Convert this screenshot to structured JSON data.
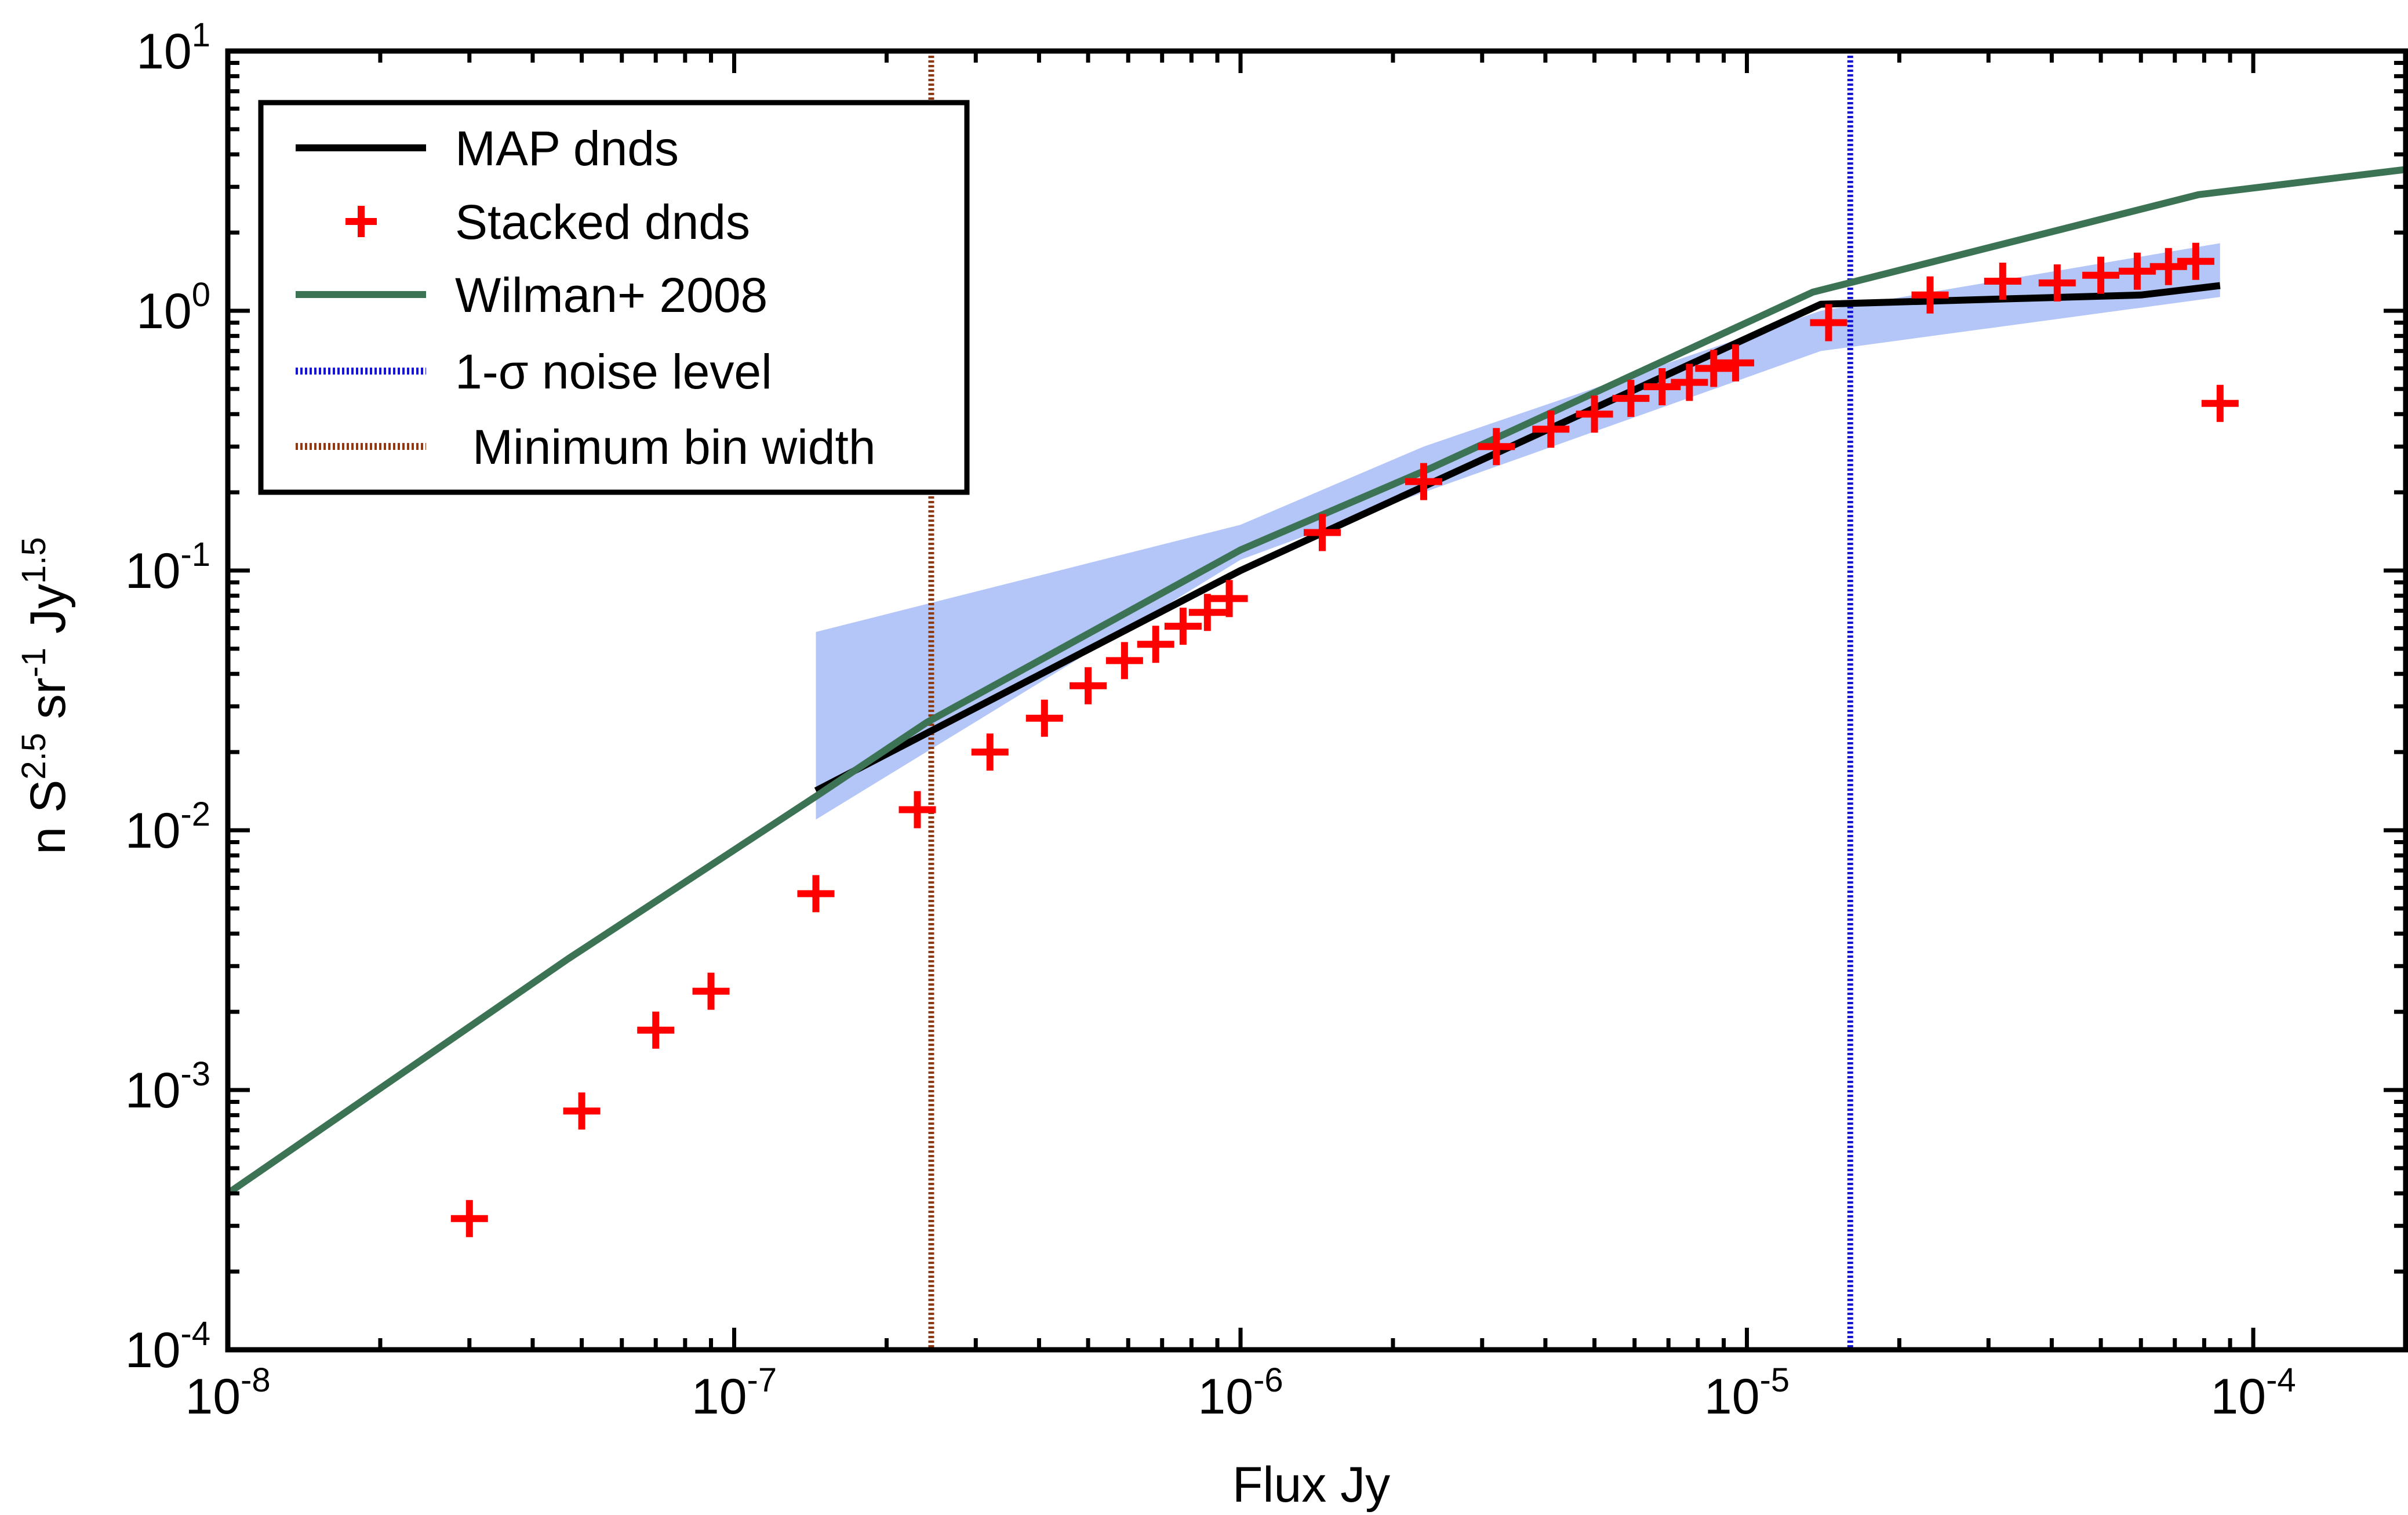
{
  "chart_data": {
    "type": "line",
    "title": "",
    "xlabel": "Flux Jy",
    "ylabel": {
      "base": "n S",
      "exp1": "2.5",
      "mid1": " sr",
      "exp2": "-1",
      "mid2": " Jy",
      "exp3": "1.5"
    },
    "xscale": "log",
    "yscale": "log",
    "xlim": [
      1e-08,
      0.0002
    ],
    "ylim": [
      0.0001,
      10
    ],
    "xticks": [
      {
        "value": 1e-08,
        "base": "10",
        "exp": "-8"
      },
      {
        "value": 1e-07,
        "base": "10",
        "exp": "-7"
      },
      {
        "value": 1e-06,
        "base": "10",
        "exp": "-6"
      },
      {
        "value": 1e-05,
        "base": "10",
        "exp": "-5"
      },
      {
        "value": 0.0001,
        "base": "10",
        "exp": "-4"
      }
    ],
    "yticks": [
      {
        "value": 0.0001,
        "base": "10",
        "exp": "-4"
      },
      {
        "value": 0.001,
        "base": "10",
        "exp": "-3"
      },
      {
        "value": 0.01,
        "base": "10",
        "exp": "-2"
      },
      {
        "value": 0.1,
        "base": "10",
        "exp": "-1"
      },
      {
        "value": 1,
        "base": "10",
        "exp": "0"
      },
      {
        "value": 10,
        "base": "10",
        "exp": "1"
      }
    ],
    "legend_position": "top-left",
    "band": {
      "name": "MAP dnds uncertainty",
      "color": "#b3c6f7",
      "x": [
        1.45e-07,
        1e-06,
        2.3e-06,
        1.4e-05,
        8.6e-05
      ],
      "upper": [
        0.058,
        0.15,
        0.3,
        1.0,
        1.82
      ],
      "lower": [
        0.011,
        0.11,
        0.2,
        0.7,
        1.13
      ]
    },
    "series": [
      {
        "name": "MAP dnds",
        "legend_label": "MAP dnds",
        "kind": "line",
        "color": "#000000",
        "x": [
          1.45e-07,
          1e-06,
          1.4e-05,
          6e-05,
          8.6e-05
        ],
        "y": [
          0.0142,
          0.1,
          1.06,
          1.15,
          1.25
        ]
      },
      {
        "name": "Stacked dnds",
        "legend_label": "Stacked dnds",
        "kind": "marker",
        "color": "#ff0000",
        "x": [
          3e-08,
          5e-08,
          7e-08,
          9e-08,
          1.45e-07,
          2.3e-07,
          3.2e-07,
          4.1e-07,
          5e-07,
          5.9e-07,
          6.8e-07,
          7.7e-07,
          8.6e-07,
          9.5e-07,
          1.45e-06,
          2.3e-06,
          3.2e-06,
          4.1e-06,
          5e-06,
          5.9e-06,
          6.8e-06,
          7.7e-06,
          8.6e-06,
          9.5e-06,
          1.45e-05,
          2.3e-05,
          3.2e-05,
          4.1e-05,
          5e-05,
          5.9e-05,
          6.8e-05,
          7.7e-05,
          8.6e-05
        ],
        "y": [
          0.00032,
          0.00083,
          0.0017,
          0.0024,
          0.0057,
          0.012,
          0.02,
          0.027,
          0.036,
          0.045,
          0.052,
          0.061,
          0.069,
          0.078,
          0.14,
          0.22,
          0.3,
          0.35,
          0.4,
          0.46,
          0.51,
          0.53,
          0.6,
          0.63,
          0.9,
          1.15,
          1.3,
          1.28,
          1.37,
          1.42,
          1.48,
          1.55,
          0.44
        ]
      },
      {
        "name": "Wilman+ 2008",
        "legend_label": "Wilman+ 2008",
        "kind": "line",
        "color": "#3d7355",
        "x": [
          1e-08,
          4.7e-08,
          1.45e-07,
          2.4e-07,
          1e-06,
          2.4e-06,
          1.35e-05,
          7.8e-05,
          0.0002
        ],
        "y": [
          0.0004,
          0.0032,
          0.0135,
          0.026,
          0.12,
          0.25,
          1.18,
          2.8,
          3.5
        ]
      }
    ],
    "vlines": [
      {
        "name": "1-σ noise level",
        "legend_label": "1-σ noise level",
        "x": 1.6e-05,
        "color": "#1414d4",
        "style": "dotted"
      },
      {
        "name": "Minimum bin width",
        "legend_label": "Minimum bin width",
        "x": 2.45e-07,
        "color": "#8b3a14",
        "style": "dotted"
      }
    ]
  }
}
